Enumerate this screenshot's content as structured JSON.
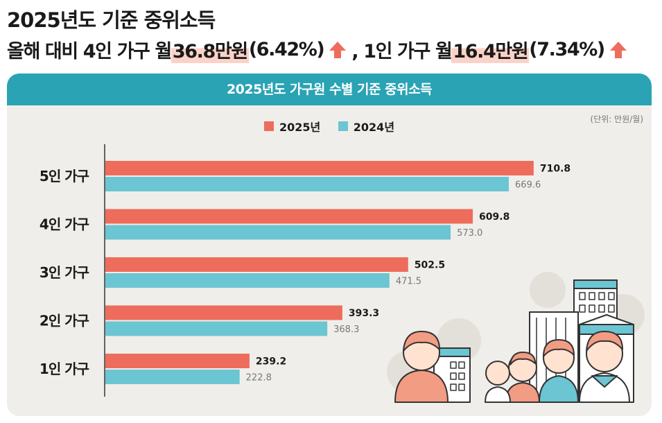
{
  "header": {
    "title": "2025년도 기준 중위소득",
    "subtitle_part1": "올해 대비 4인 가구 월 ",
    "subtitle_hl1": "36.8만원",
    "subtitle_part2": "(6.42%)",
    "subtitle_part3": ", 1인 가구 월 ",
    "subtitle_hl2": "16.4만원",
    "subtitle_part4": "(7.34%)"
  },
  "panel": {
    "unit_note": "(단위: 만원/월)"
  },
  "colors": {
    "series_2025": "#ee6c5c",
    "series_2024": "#6cc5d2",
    "header": "#2aa3b4",
    "arrow": "#ee6c5c"
  },
  "chart_data": {
    "type": "bar",
    "orientation": "horizontal",
    "title": "2025년도 가구원 수별 기준 중위소득",
    "categories": [
      "5인 가구",
      "4인 가구",
      "3인 가구",
      "2인 가구",
      "1인 가구"
    ],
    "series": [
      {
        "name": "2025년",
        "values": [
          710.8,
          609.8,
          502.5,
          393.3,
          239.2
        ],
        "labels": [
          "710.8",
          "609.8",
          "502.5",
          "393.3",
          "239.2"
        ]
      },
      {
        "name": "2024년",
        "values": [
          669.6,
          573.0,
          471.5,
          368.3,
          222.8
        ],
        "labels": [
          "669.6",
          "573.0",
          "471.5",
          "368.3",
          "222.8"
        ]
      }
    ],
    "xlim": [
      0,
      780
    ],
    "legend_position": "top-center",
    "grid": false
  }
}
